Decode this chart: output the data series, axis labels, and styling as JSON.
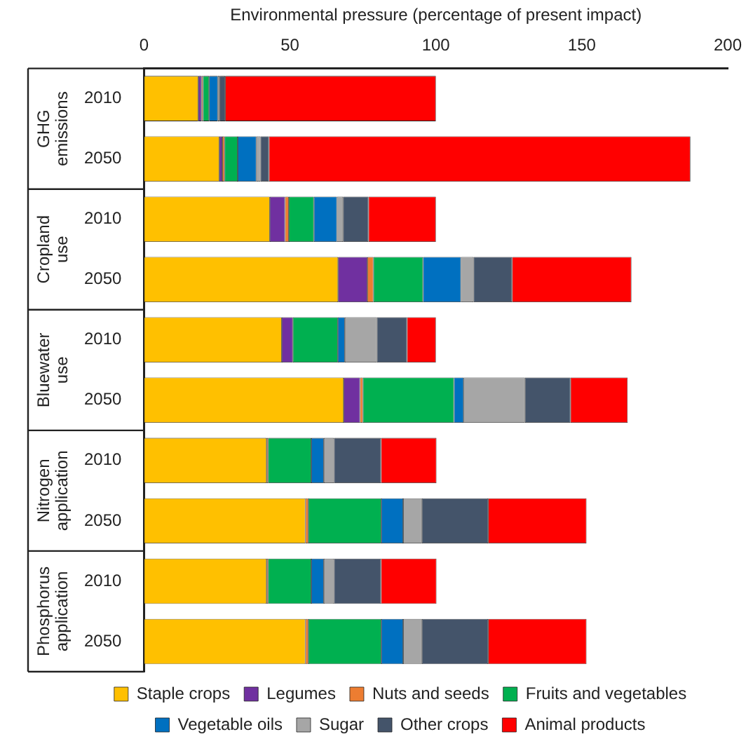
{
  "chart_data": {
    "type": "bar",
    "orientation": "horizontal",
    "stacked": true,
    "xlabel": "Environmental pressure (percentage of present impact)",
    "categories": [
      "2010",
      "2050",
      "2010",
      "2050",
      "2010",
      "2050",
      "2010",
      "2050",
      "2010",
      "2050"
    ],
    "annotations": [
      "GHG emissions",
      "Cropland use",
      "Bluewater use",
      "Nitrogen application",
      "Phosphorus application"
    ],
    "xlim": [
      0,
      200
    ],
    "xticks": [
      0,
      50,
      100,
      150,
      200
    ],
    "grid": false,
    "legend": "bottom",
    "series": [
      {
        "name": "Staple crops",
        "color": "#ffc000",
        "values": [
          18.6,
          25.8,
          43.1,
          66.5,
          47.2,
          68.4,
          42.0,
          55.3,
          42.0,
          55.3
        ]
      },
      {
        "name": "Legumes",
        "color": "#7030a0",
        "values": [
          1.1,
          1.0,
          5.2,
          10.0,
          3.8,
          5.6,
          0,
          0,
          0,
          0
        ]
      },
      {
        "name": "Nuts and seeds",
        "color": "#ed7d31",
        "values": [
          0.5,
          0.8,
          1.3,
          2.1,
          0,
          1.0,
          0.5,
          1.0,
          0.5,
          1.0
        ]
      },
      {
        "name": "Fruits and vegetables",
        "color": "#00b050",
        "values": [
          2.1,
          4.5,
          8.6,
          17.0,
          15.4,
          31.2,
          14.8,
          25.0,
          14.8,
          25.0
        ]
      },
      {
        "name": "Vegetable oils",
        "color": "#0070c0",
        "values": [
          3.0,
          6.4,
          7.9,
          13.0,
          2.4,
          3.3,
          4.3,
          7.5,
          4.3,
          7.5
        ]
      },
      {
        "name": "Sugar",
        "color": "#a6a6a6",
        "values": [
          0.6,
          1.4,
          2.1,
          4.3,
          11.0,
          21.0,
          3.5,
          6.4,
          3.5,
          6.4
        ]
      },
      {
        "name": "Other crops",
        "color": "#44546a",
        "values": [
          1.9,
          2.9,
          8.7,
          13.2,
          10.3,
          15.6,
          16.1,
          22.7,
          16.1,
          22.7
        ]
      },
      {
        "name": "Animal products",
        "color": "#ff0000",
        "values": [
          72.2,
          144.4,
          23.1,
          40.9,
          9.9,
          19.6,
          19.0,
          33.7,
          19.0,
          33.7
        ]
      }
    ]
  }
}
